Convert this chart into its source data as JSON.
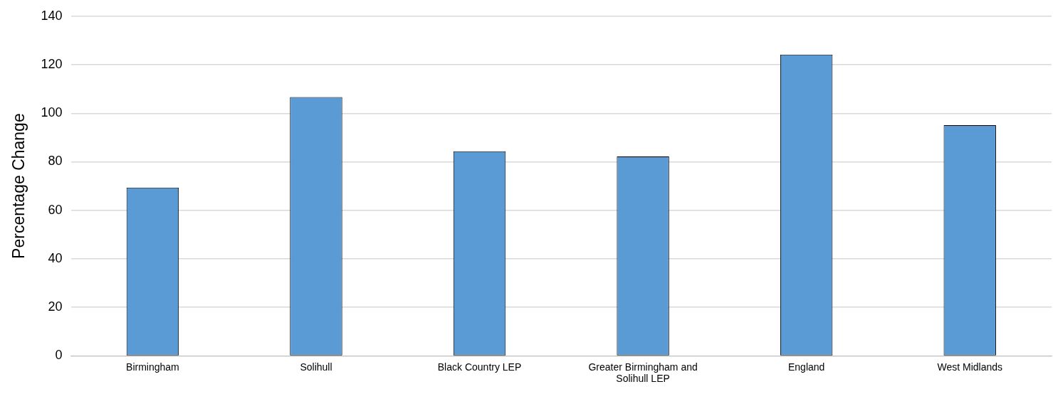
{
  "chart_data": {
    "type": "bar",
    "ylabel": "Percentage Change",
    "categories": [
      "Birmingham",
      "Solihull",
      "Black Country LEP",
      "Greater Birmingham and Solihull LEP",
      "England",
      "West Midlands"
    ],
    "values": [
      69.4,
      106.7,
      84.3,
      82.2,
      124.2,
      95.1
    ],
    "color": "#5b9bd5",
    "ylim": [
      0,
      140
    ],
    "yticks": [
      0,
      20,
      40,
      60,
      80,
      100,
      120,
      140
    ],
    "grid": "y"
  }
}
